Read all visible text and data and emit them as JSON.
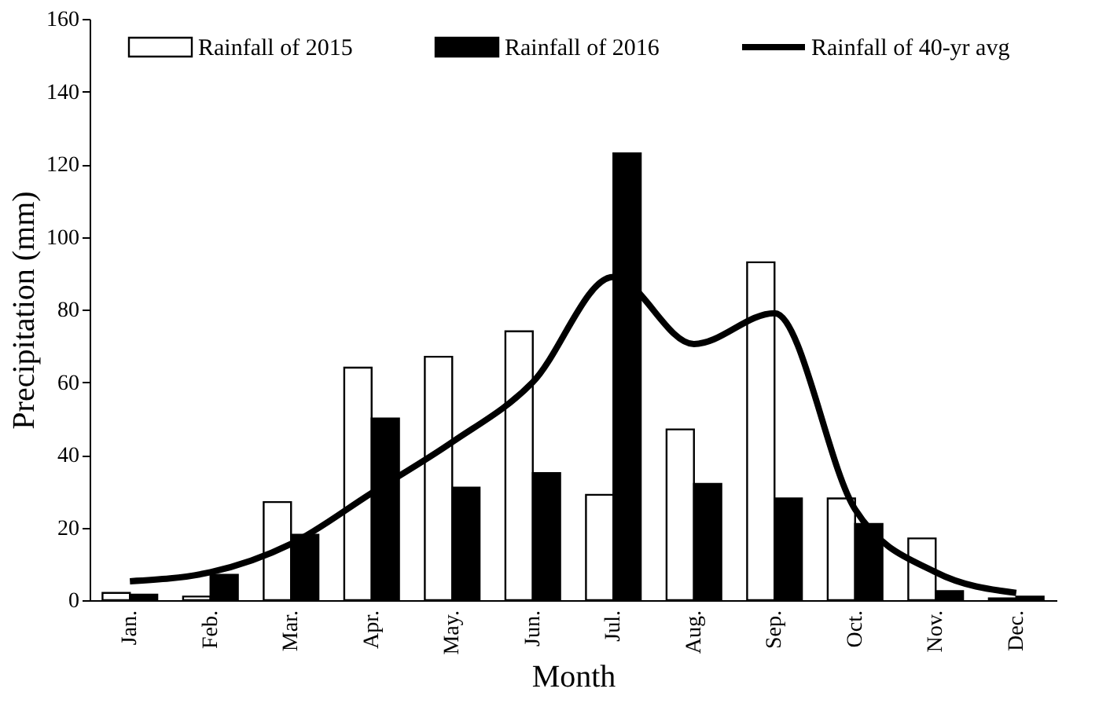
{
  "chart_data": {
    "type": "bar",
    "xlabel": "Month",
    "ylabel": "Precipitation (mm)",
    "categories": [
      "Jan.",
      "Feb.",
      "Mar.",
      "Apr.",
      "May.",
      "Jun.",
      "Jul.",
      "Aug.",
      "Sep.",
      "Oct.",
      "Nov.",
      "Dec."
    ],
    "series": [
      {
        "name": "Rainfall of 2015",
        "color": "#ffffff",
        "values": [
          2,
          1,
          27,
          64,
          67,
          74,
          29,
          47,
          93,
          28,
          17,
          0.5
        ]
      },
      {
        "name": "Rainfall of 2016",
        "color": "#000000",
        "values": [
          1.5,
          7,
          18,
          50,
          31,
          35,
          123,
          32,
          28,
          21,
          2.5,
          1
        ]
      },
      {
        "name": "Rainfall of 40-yr avg",
        "type": "line",
        "color": "#000000",
        "values": [
          5.2,
          7.7,
          15.5,
          29.5,
          43.5,
          60,
          89,
          70.5,
          79,
          25,
          7.7,
          2
        ]
      }
    ],
    "ylim": [
      0,
      160
    ],
    "yticks": [
      0,
      20,
      40,
      60,
      80,
      100,
      120,
      140,
      160
    ],
    "grid": false,
    "legend": "top"
  }
}
